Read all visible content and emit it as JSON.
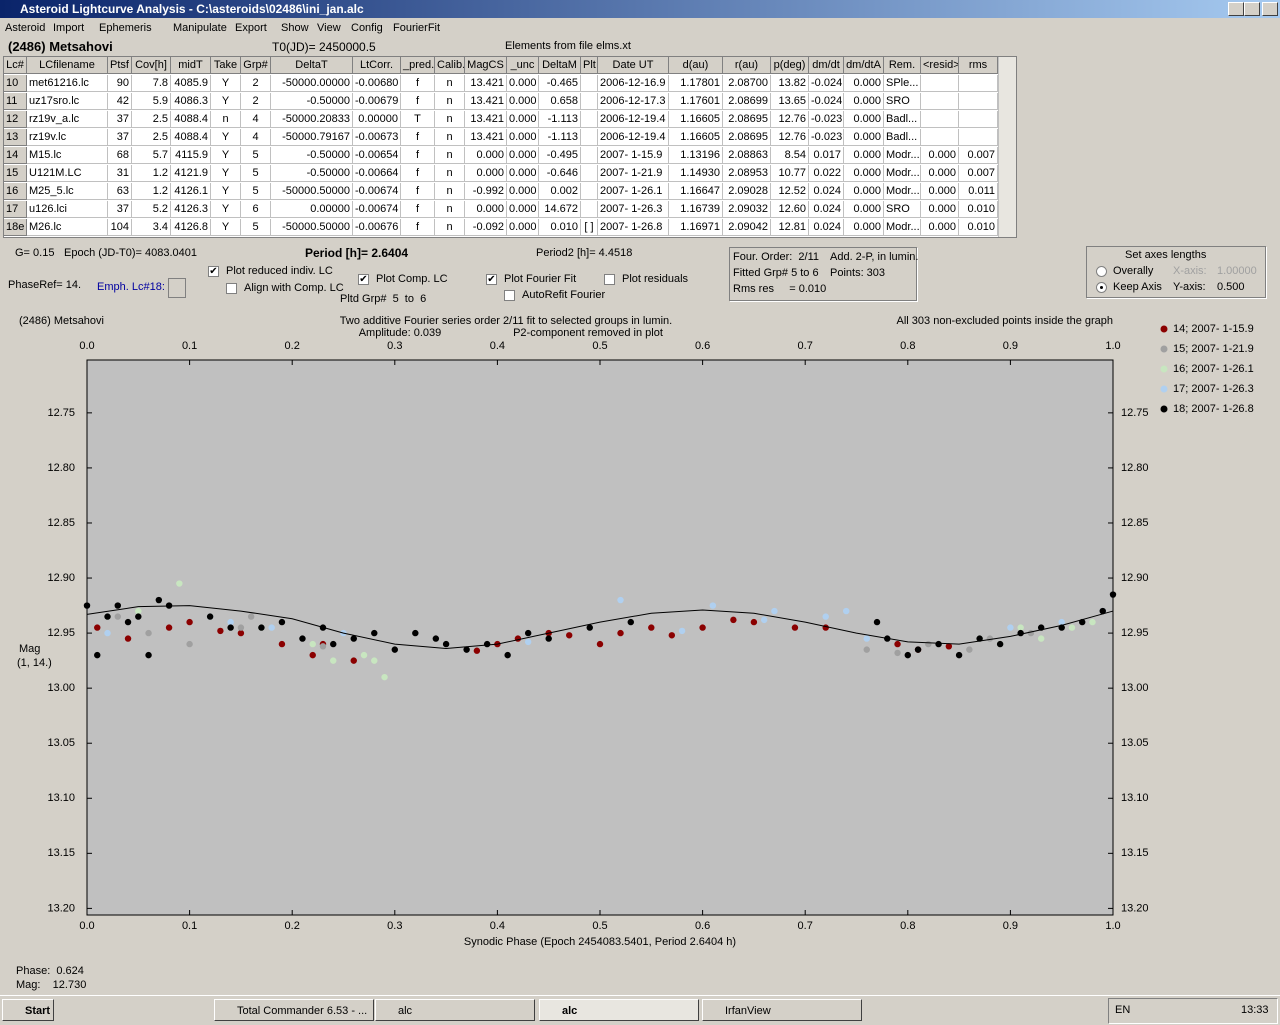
{
  "window": {
    "title": "Asteroid Lightcurve Analysis - C:\\asteroids\\02486\\ini_jan.alc",
    "menu": [
      "Asteroid",
      "Import",
      "Ephemeris",
      "Manipulate",
      "Export",
      "Show",
      "View",
      "Config",
      "FourierFit"
    ]
  },
  "header": {
    "object": "(2486) Metsahovi",
    "t0": "T0(JD)= 2450000.5",
    "elements": "Elements from file elms.xt"
  },
  "table": {
    "columns": [
      "Lc#",
      "LCfilename",
      "Ptsf",
      "Cov[h]",
      "midT",
      "Take",
      "Grp#",
      "DeltaT",
      "LtCorr.",
      "_pred.",
      "Calib.",
      "MagCS",
      "_unc",
      "DeltaM",
      "Plt",
      "Date UT",
      "d(au)",
      "r(au)",
      "p(deg)",
      "dm/dt",
      "dm/dtA",
      "Rem.",
      "<resid>",
      "rms res"
    ],
    "rows": [
      [
        "10",
        "met61216.lc",
        "90",
        "7.8",
        "4085.9",
        "Y",
        "2",
        "-50000.00000",
        "-0.00680",
        "f",
        "n",
        "13.421",
        "0.000",
        "-0.465",
        null,
        "2006-12-16.9",
        "1.17801",
        "2.08700",
        "13.82",
        "-0.024",
        "0.000",
        "SPle...",
        null,
        null
      ],
      [
        "11",
        "uz17sro.lc",
        "42",
        "5.9",
        "4086.3",
        "Y",
        "2",
        "-0.50000",
        "-0.00679",
        "f",
        "n",
        "13.421",
        "0.000",
        "0.658",
        null,
        "2006-12-17.3",
        "1.17601",
        "2.08699",
        "13.65",
        "-0.024",
        "0.000",
        "SRO",
        null,
        null
      ],
      [
        "12",
        "rz19v_a.lc",
        "37",
        "2.5",
        "4088.4",
        "n",
        "4",
        "-50000.20833",
        "0.00000",
        "T",
        "n",
        "13.421",
        "0.000",
        "-1.113",
        null,
        "2006-12-19.4",
        "1.16605",
        "2.08695",
        "12.76",
        "-0.023",
        "0.000",
        "Badl...",
        null,
        null
      ],
      [
        "13",
        "rz19v.lc",
        "37",
        "2.5",
        "4088.4",
        "Y",
        "4",
        "-50000.79167",
        "-0.00673",
        "f",
        "n",
        "13.421",
        "0.000",
        "-1.113",
        null,
        "2006-12-19.4",
        "1.16605",
        "2.08695",
        "12.76",
        "-0.023",
        "0.000",
        "Badl...",
        null,
        null
      ],
      [
        "14",
        "M15.lc",
        "68",
        "5.7",
        "4115.9",
        "Y",
        "5",
        "-0.50000",
        "-0.00654",
        "f",
        "n",
        "0.000",
        "0.000",
        "-0.495",
        null,
        "2007- 1-15.9",
        "1.13196",
        "2.08863",
        "8.54",
        "0.017",
        "0.000",
        "Modr...",
        "0.000",
        "0.007"
      ],
      [
        "15",
        "U121M.LC",
        "31",
        "1.2",
        "4121.9",
        "Y",
        "5",
        "-0.50000",
        "-0.00664",
        "f",
        "n",
        "0.000",
        "0.000",
        "-0.646",
        null,
        "2007- 1-21.9",
        "1.14930",
        "2.08953",
        "10.77",
        "0.022",
        "0.000",
        "Modr...",
        "0.000",
        "0.007"
      ],
      [
        "16",
        "M25_5.lc",
        "63",
        "1.2",
        "4126.1",
        "Y",
        "5",
        "-50000.50000",
        "-0.00674",
        "f",
        "n",
        "-0.992",
        "0.000",
        "0.002",
        null,
        "2007- 1-26.1",
        "1.16647",
        "2.09028",
        "12.52",
        "0.024",
        "0.000",
        "Modr...",
        "0.000",
        "0.011"
      ],
      [
        "17",
        "u126.lci",
        "37",
        "5.2",
        "4126.3",
        "Y",
        "6",
        "0.00000",
        "-0.00674",
        "f",
        "n",
        "0.000",
        "0.000",
        "14.672",
        null,
        "2007- 1-26.3",
        "1.16739",
        "2.09032",
        "12.60",
        "0.024",
        "0.000",
        "SRO",
        "0.000",
        "0.010"
      ],
      [
        "18e",
        "M26.lc",
        "104",
        "3.4",
        "4126.8",
        "Y",
        "5",
        "-50000.50000",
        "-0.00676",
        "f",
        "n",
        "-0.092",
        "0.000",
        "0.010",
        "[ ]",
        "2007- 1-26.8",
        "1.16971",
        "2.09042",
        "12.81",
        "0.024",
        "0.000",
        "Modr...",
        "0.000",
        "0.010"
      ]
    ]
  },
  "params": {
    "g": "G= 0.15",
    "epoch": "Epoch (JD-T0)= 4083.0401",
    "period": "Period [h]= 2.6404",
    "period2": "Period2 [h]= 4.4518",
    "phase_ref": "PhaseRef= 14.",
    "emph": "Emph. Lc#18:",
    "pltd_grp": "Pltd Grp#  5  to  6"
  },
  "checkboxes": [
    {
      "label": "Plot reduced indiv. LC",
      "checked": true
    },
    {
      "label": "Align with Comp. LC",
      "checked": false
    },
    {
      "label": "Plot Comp. LC",
      "checked": true
    },
    {
      "label": "Plot Fourier Fit",
      "checked": true
    },
    {
      "label": "AutoRefit Fourier",
      "checked": false
    },
    {
      "label": "Plot residuals",
      "checked": false
    }
  ],
  "fourier": {
    "order": "Four. Order:  2/11",
    "add": "Add. 2-P, in lumin.",
    "fitted": "Fitted Grp# 5 to 6",
    "points": "Points: 303",
    "rms": "Rms res     = 0.010"
  },
  "axes_box": {
    "title": "Set axes lengths",
    "options": [
      {
        "label": "Overally",
        "checked": false
      },
      {
        "label": "Keep Axis",
        "checked": true
      }
    ],
    "x_label": "X-axis:",
    "x_value": "1.00000",
    "y_label": "Y-axis:",
    "y_value": "0.500"
  },
  "chart_data": {
    "type": "scatter",
    "title": "(2486) Metsahovi",
    "annotations": [
      "Two additive Fourier series order 2/11 fit to selected groups in lumin.",
      "Amplitude: 0.039",
      "P2-component removed in plot",
      "All 303 non-excluded points inside the graph"
    ],
    "xlabel": "Synodic Phase (Epoch 2454083.5401, Period 2.6404 h)",
    "ylabel": "Mag",
    "ylabel2": "(1, 14.)",
    "xlim": [
      0,
      1
    ],
    "xticks": [
      {
        "value": 0,
        "label": "0.0"
      },
      0.1,
      0.2,
      0.3,
      0.4,
      0.5,
      0.6,
      0.7,
      0.8,
      0.9,
      {
        "value": 1,
        "label": "1.0"
      }
    ],
    "ylim": [
      12.702,
      13.206
    ],
    "y_inverted": true,
    "yticks": [
      12.75,
      {
        "value": 12.8,
        "label": "12.80"
      },
      12.85,
      {
        "value": 12.9,
        "label": "12.90"
      },
      12.95,
      {
        "value": 13,
        "label": "13.00"
      },
      13.05,
      {
        "value": 13.1,
        "label": "13.10"
      },
      13.15,
      {
        "value": 13.2,
        "label": "13.20"
      }
    ],
    "series": [
      {
        "name": "14; 2007- 1-15.9",
        "color": "#8b0000",
        "x": [
          0.01,
          0.04,
          0.08,
          0.1,
          0.13,
          0.15,
          0.19,
          0.22,
          0.23,
          0.26,
          0.38,
          0.4,
          0.42,
          0.45,
          0.47,
          0.5,
          0.52,
          0.55,
          0.57,
          0.6,
          0.63,
          0.65,
          0.69,
          0.72,
          0.79,
          0.81,
          0.84
        ],
        "values": [
          12.945,
          12.955,
          12.945,
          12.94,
          12.948,
          12.95,
          12.96,
          12.97,
          12.96,
          12.975,
          12.966,
          12.96,
          12.955,
          12.95,
          12.952,
          12.96,
          12.95,
          12.945,
          12.952,
          12.945,
          12.938,
          12.94,
          12.945,
          12.945,
          12.96,
          12.965,
          12.962
        ]
      },
      {
        "name": "15; 2007- 1-21.9",
        "color": "#a0a0a0",
        "x": [
          0.03,
          0.06,
          0.1,
          0.15,
          0.16,
          0.23,
          0.76,
          0.79,
          0.82,
          0.86,
          0.88,
          0.92
        ],
        "values": [
          12.935,
          12.95,
          12.96,
          12.945,
          12.935,
          12.962,
          12.965,
          12.968,
          12.96,
          12.965,
          12.955,
          12.95
        ]
      },
      {
        "name": "16; 2007- 1-26.1",
        "color": "#c8e6c0",
        "x": [
          0.02,
          0.05,
          0.09,
          0.12,
          0.17,
          0.22,
          0.24,
          0.27,
          0.28,
          0.29,
          0.87,
          0.89,
          0.91,
          0.93,
          0.96,
          0.98
        ],
        "values": [
          12.935,
          12.93,
          12.905,
          12.935,
          12.945,
          12.96,
          12.975,
          12.97,
          12.975,
          12.99,
          12.955,
          12.96,
          12.945,
          12.955,
          12.945,
          12.94
        ]
      },
      {
        "name": "17; 2007- 1-26.3",
        "color": "#b0d0f0",
        "x": [
          0.02,
          0.12,
          0.14,
          0.18,
          0.25,
          0.43,
          0.52,
          0.58,
          0.61,
          0.66,
          0.67,
          0.72,
          0.74,
          0.76,
          0.9,
          0.95,
          0.99
        ],
        "values": [
          12.95,
          12.935,
          12.94,
          12.945,
          12.95,
          12.958,
          12.92,
          12.948,
          12.925,
          12.938,
          12.93,
          12.935,
          12.93,
          12.955,
          12.945,
          12.94,
          12.93
        ]
      },
      {
        "name": "18; 2007- 1-26.8",
        "color": "#000000",
        "x": [
          0.0,
          0.01,
          0.02,
          0.03,
          0.04,
          0.05,
          0.06,
          0.07,
          0.08,
          0.12,
          0.14,
          0.17,
          0.19,
          0.21,
          0.23,
          0.24,
          0.26,
          0.28,
          0.3,
          0.32,
          0.34,
          0.35,
          0.37,
          0.39,
          0.41,
          0.43,
          0.45,
          0.49,
          0.53,
          0.77,
          0.78,
          0.8,
          0.81,
          0.83,
          0.85,
          0.87,
          0.89,
          0.91,
          0.93,
          0.95,
          0.97,
          0.99,
          1.0
        ],
        "values": [
          12.925,
          12.97,
          12.935,
          12.925,
          12.94,
          12.935,
          12.97,
          12.92,
          12.925,
          12.935,
          12.945,
          12.945,
          12.94,
          12.955,
          12.945,
          12.96,
          12.955,
          12.95,
          12.965,
          12.95,
          12.955,
          12.96,
          12.965,
          12.96,
          12.97,
          12.95,
          12.955,
          12.945,
          12.94,
          12.94,
          12.955,
          12.97,
          12.965,
          12.96,
          12.97,
          12.955,
          12.96,
          12.95,
          12.945,
          12.945,
          12.94,
          12.93,
          12.915
        ]
      }
    ],
    "fit": {
      "color": "#000000",
      "x": [
        0,
        0.05,
        0.1,
        0.15,
        0.2,
        0.25,
        0.3,
        0.35,
        0.4,
        0.45,
        0.5,
        0.55,
        0.6,
        0.65,
        0.7,
        0.75,
        0.8,
        0.85,
        0.9,
        0.95,
        1.0
      ],
      "values": [
        12.933,
        12.926,
        12.925,
        12.93,
        12.937,
        12.95,
        12.96,
        12.964,
        12.96,
        12.95,
        12.94,
        12.932,
        12.929,
        12.932,
        12.94,
        12.95,
        12.958,
        12.96,
        12.953,
        12.943,
        12.93
      ]
    }
  },
  "status": {
    "phase": "Phase:  0.624",
    "mag": "Mag:    12.730"
  },
  "taskbar": {
    "start": "Start",
    "tasks": [
      "Total Commander 6.53 - ...",
      "alc",
      "alc",
      "IrfanView"
    ],
    "lang": "EN",
    "clock": "13:33"
  }
}
